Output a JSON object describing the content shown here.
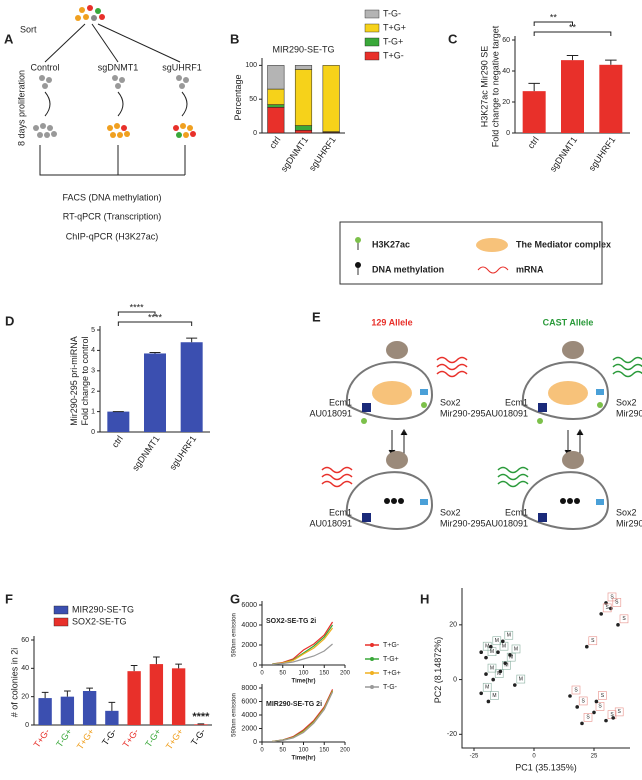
{
  "panels": {
    "a": "A",
    "e": "E"
  },
  "diagram_a": {
    "sort": "Sort",
    "groups": [
      "Control",
      "sgDNMT1",
      "sgUHRF1"
    ],
    "proliferation": "8 days proliferation",
    "assays": [
      "FACS (DNA methylation)",
      "RT-qPCR (Transcription)",
      "ChIP-qPCR (H3K27ac)"
    ]
  },
  "legend_box": {
    "h3k27ac": "H3K27ac",
    "mediator": "The Mediator complex",
    "methylation": "DNA methylation",
    "mrna": "mRNA"
  },
  "diagram_e": {
    "alleles": [
      "129 Allele",
      "CAST Allele"
    ],
    "left_gene": [
      "Ecm1",
      "AU018091"
    ],
    "right_gene": [
      "Sox2",
      "Mir290-295"
    ]
  },
  "chart_data": [
    {
      "panel_label": "B",
      "type": "stacked_bar",
      "title": "MIR290-SE-TG",
      "ylabel": [
        "Percentage"
      ],
      "categories": [
        "ctrl",
        "sgDNMT1",
        "sgUHRF1"
      ],
      "series": [
        {
          "name": "T+G-",
          "color": "#e8302a",
          "values": [
            38,
            4,
            1
          ]
        },
        {
          "name": "T-G+",
          "color": "#3aa83a",
          "values": [
            4,
            7,
            1
          ]
        },
        {
          "name": "T+G+",
          "color": "#f6d21a",
          "values": [
            23,
            83,
            98
          ]
        },
        {
          "name": "T-G-",
          "color": "#b4b4b4",
          "values": [
            35,
            6,
            0
          ]
        }
      ],
      "ylim": [
        0,
        105
      ],
      "yticks": [
        0,
        50,
        100
      ],
      "legend": "right"
    },
    {
      "panel_label": "C",
      "type": "bar",
      "ylabel": [
        "H3K27ac Mir290 SE",
        "Fold change to negative target"
      ],
      "categories": [
        "ctrl",
        "sgDNMT1",
        "sgUHRF1"
      ],
      "values": [
        27,
        47,
        44
      ],
      "errors": [
        5,
        3,
        3
      ],
      "color": "#e8302a",
      "ylim": [
        0,
        60
      ],
      "yticks": [
        0,
        20,
        40,
        60
      ],
      "annotations": [
        "**",
        "**"
      ]
    },
    {
      "panel_label": "D",
      "type": "bar",
      "ylabel": [
        "Mir290-295 pri-miRNA",
        "Fold change to control"
      ],
      "categories": [
        "ctrl",
        "sgDNMT1",
        "sgUHRF1"
      ],
      "values": [
        1,
        3.85,
        4.4
      ],
      "errors": [
        0,
        0.05,
        0.2
      ],
      "color": "#3b4fb0",
      "ylim": [
        0,
        5
      ],
      "yticks": [
        0,
        1,
        2,
        3,
        4,
        5
      ],
      "annotations": [
        "****",
        "****"
      ]
    },
    {
      "panel_label": "F",
      "type": "bar",
      "ylabel": [
        "# of colonies in 2i"
      ],
      "categories": [
        "T+G-",
        "T-G+",
        "T+G+",
        "T-G-",
        "T+G-",
        "T-G+",
        "T+G+",
        "T-G-"
      ],
      "category_colors": [
        "#e8302a",
        "#3aa83a",
        "#f0a020",
        "#111111",
        "#e8302a",
        "#3aa83a",
        "#f0a020",
        "#111111"
      ],
      "series": [
        {
          "name": "MIR290-SE-TG",
          "color": "#3b4fb0",
          "values": [
            19,
            20,
            24,
            10,
            null,
            null,
            null,
            null
          ],
          "errors": [
            4,
            4,
            2,
            6,
            null,
            null,
            null,
            null
          ]
        },
        {
          "name": "SOX2-SE-TG",
          "color": "#e8302a",
          "values": [
            null,
            null,
            null,
            null,
            38,
            43,
            40,
            0.5
          ],
          "errors": [
            null,
            null,
            null,
            null,
            4,
            5,
            3,
            0.3
          ]
        }
      ],
      "ylim": [
        0,
        60
      ],
      "yticks": [
        0,
        20,
        40,
        60
      ],
      "annotations": [
        "****"
      ],
      "legend": "top"
    },
    {
      "panel_label": "G",
      "type": "line",
      "title": "SOX2-SE-TG 2i",
      "ylabel": [
        "590nm emission"
      ],
      "xlabel": "Time(hr)",
      "x": [
        25,
        50,
        75,
        100,
        125,
        150,
        170
      ],
      "series": [
        {
          "name": "T+G-",
          "color": "#e8302a",
          "values": [
            100,
            250,
            600,
            1500,
            2100,
            3000,
            4300
          ]
        },
        {
          "name": "T-G+",
          "color": "#3aa83a",
          "values": [
            100,
            200,
            500,
            1200,
            1900,
            2800,
            4000
          ]
        },
        {
          "name": "T+G+",
          "color": "#f0b020",
          "values": [
            80,
            200,
            450,
            1100,
            1700,
            2600,
            3700
          ]
        },
        {
          "name": "T-G-",
          "color": "#999999",
          "values": [
            60,
            150,
            300,
            600,
            900,
            1400,
            2100
          ]
        }
      ],
      "xlim": [
        0,
        200
      ],
      "xticks": [
        0,
        50,
        100,
        150,
        200
      ],
      "ylim": [
        0,
        6000
      ],
      "yticks": [
        0,
        2000,
        4000,
        6000
      ],
      "legend": "right"
    },
    {
      "type": "line",
      "title": "MIR290-SE-TG 2i",
      "ylabel": [
        "590nm emission"
      ],
      "xlabel": "Time(hr)",
      "x": [
        25,
        50,
        75,
        100,
        125,
        150,
        170
      ],
      "series": [
        {
          "color": "#e8302a",
          "values": [
            100,
            300,
            800,
            1800,
            3200,
            5200,
            7800
          ]
        },
        {
          "color": "#3aa83a",
          "values": [
            100,
            280,
            700,
            1600,
            3000,
            5000,
            7600
          ]
        },
        {
          "color": "#f0b020",
          "values": [
            90,
            250,
            650,
            1500,
            2900,
            4900,
            7500
          ]
        },
        {
          "color": "#999999",
          "values": [
            80,
            240,
            600,
            1400,
            2800,
            4800,
            7400
          ]
        }
      ],
      "xlim": [
        0,
        200
      ],
      "xticks": [
        0,
        50,
        100,
        150,
        200
      ],
      "ylim": [
        0,
        8000
      ],
      "yticks": [
        0,
        2000,
        4000,
        6000,
        8000
      ]
    },
    {
      "panel_label": "H",
      "type": "scatter",
      "xlabel": "PC1 (35.135%)",
      "ylabel": [
        "PC2 (8.14872%)"
      ],
      "series": [
        {
          "color": "#222222",
          "x": [
            -22,
            -20,
            -18,
            -15,
            -13,
            -12,
            -10,
            -20,
            -17,
            -14,
            -8,
            -22,
            -19
          ],
          "values": [
            10,
            8,
            12,
            10,
            14,
            6,
            9,
            2,
            0,
            3,
            -2,
            -5,
            -8
          ],
          "labels": [
            "M",
            "M",
            "M",
            "M",
            "M",
            "M",
            "M",
            "M",
            "M",
            "M",
            "M",
            "M",
            "M"
          ]
        },
        {
          "color": "#222222",
          "x": [
            30,
            32,
            28,
            22,
            18,
            25,
            30,
            33,
            20,
            26,
            15,
            35
          ],
          "values": [
            28,
            26,
            24,
            12,
            -10,
            -12,
            -15,
            -14,
            -16,
            -8,
            -6,
            20
          ],
          "labels": [
            "S",
            "S",
            "S",
            "S",
            "S",
            "S",
            "S",
            "S",
            "S",
            "S",
            "S",
            "S"
          ]
        }
      ],
      "xlim": [
        -30,
        40
      ],
      "xticks": [
        -25,
        0,
        25
      ],
      "ylim": [
        -25,
        32
      ],
      "yticks": [
        -20,
        0,
        20
      ]
    }
  ]
}
